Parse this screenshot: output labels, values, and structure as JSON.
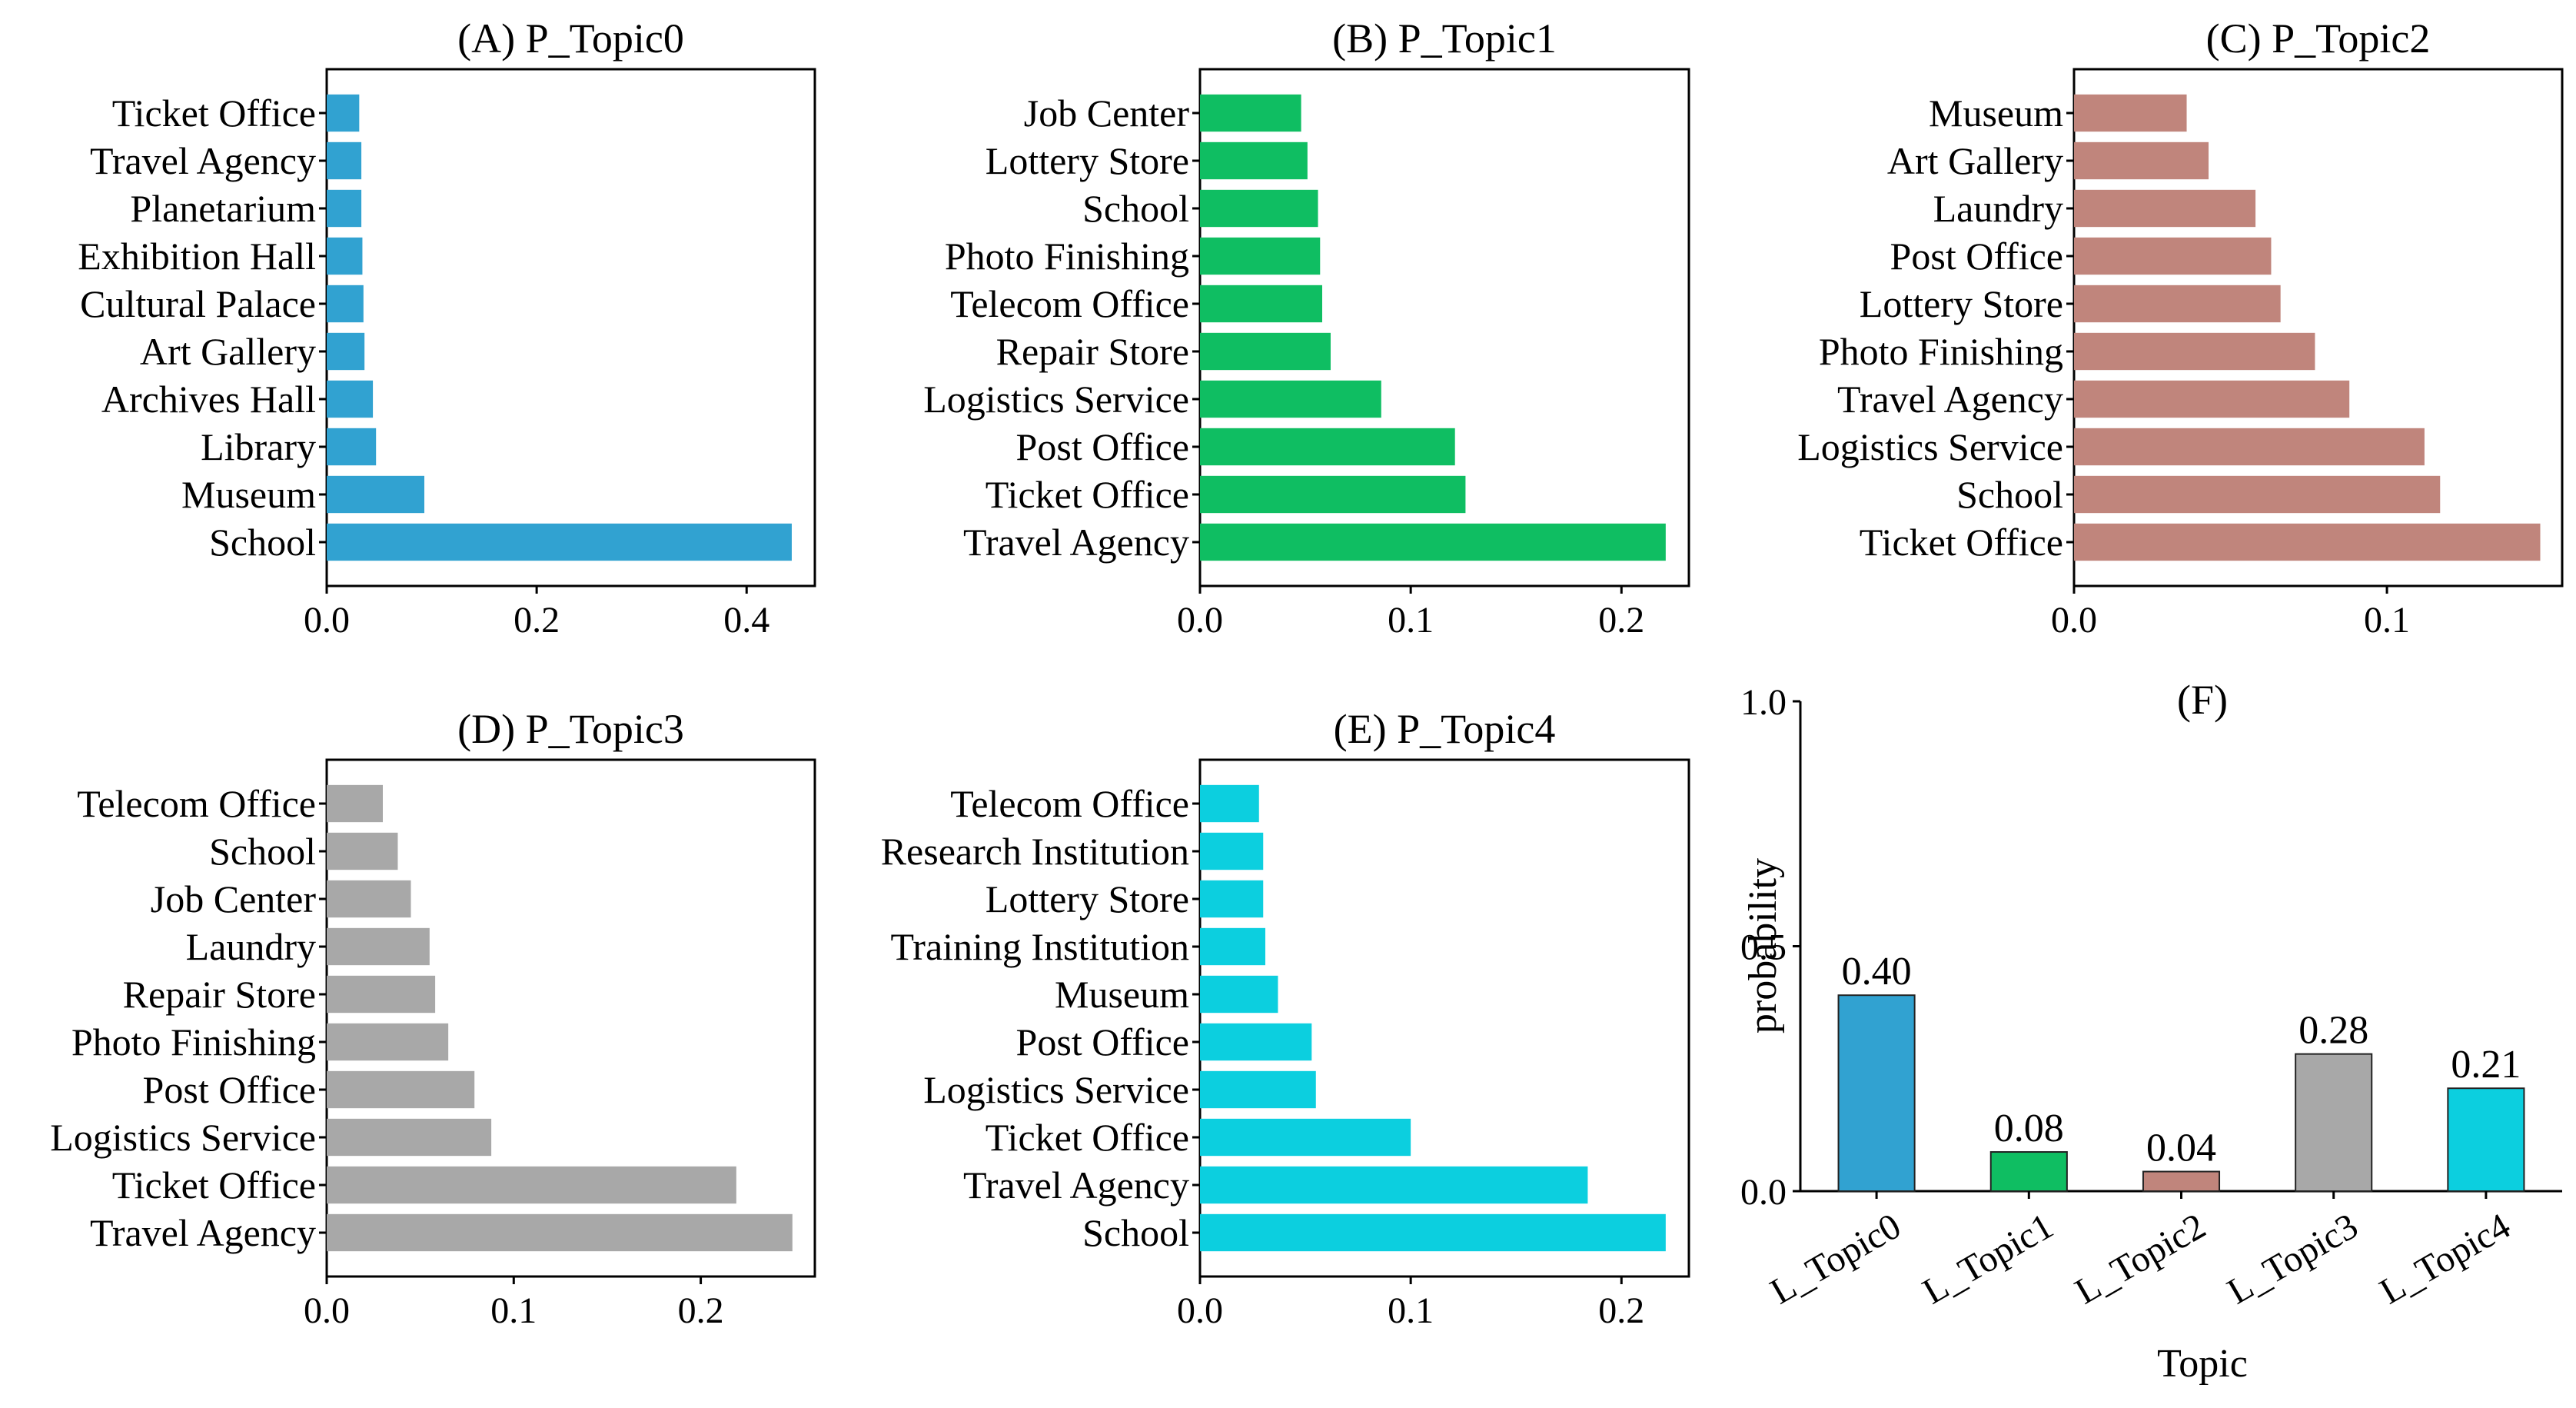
{
  "chart_data": [
    {
      "type": "bar",
      "orientation": "horizontal",
      "title": "(A) P_Topic0",
      "color": "#31a2d1",
      "categories": [
        "Ticket Office",
        "Travel Agency",
        "Planetarium",
        "Exhibition Hall",
        "Cultural Palace",
        "Art Gallery",
        "Archives Hall",
        "Library",
        "Museum",
        "School"
      ],
      "values": [
        0.031,
        0.033,
        0.033,
        0.034,
        0.035,
        0.036,
        0.044,
        0.047,
        0.093,
        0.443
      ],
      "xlim": [
        0,
        0.465
      ],
      "xticks": [
        0.0,
        0.2,
        0.4
      ],
      "xtick_labels": [
        "0.0",
        "0.2",
        "0.4"
      ]
    },
    {
      "type": "bar",
      "orientation": "horizontal",
      "title": "(B) P_Topic1",
      "color": "#0fbe62",
      "categories": [
        "Job Center",
        "Lottery Store",
        "School",
        "Photo Finishing",
        "Telecom Office",
        "Repair Store",
        "Logistics Service",
        "Post Office",
        "Ticket Office",
        "Travel Agency"
      ],
      "values": [
        0.048,
        0.051,
        0.056,
        0.057,
        0.058,
        0.062,
        0.086,
        0.121,
        0.126,
        0.221
      ],
      "xlim": [
        0,
        0.232
      ],
      "xticks": [
        0.0,
        0.1,
        0.2
      ],
      "xtick_labels": [
        "0.0",
        "0.1",
        "0.2"
      ]
    },
    {
      "type": "bar",
      "orientation": "horizontal",
      "title": "(C) P_Topic2",
      "color": "#c0857c",
      "categories": [
        "Museum",
        "Art Gallery",
        "Laundry",
        "Post Office",
        "Lottery Store",
        "Photo Finishing",
        "Travel Agency",
        "Logistics Service",
        "School",
        "Ticket Office"
      ],
      "values": [
        0.036,
        0.043,
        0.058,
        0.063,
        0.066,
        0.077,
        0.088,
        0.112,
        0.117,
        0.149
      ],
      "xlim": [
        0,
        0.156
      ],
      "xticks": [
        0.0,
        0.1
      ],
      "xtick_labels": [
        "0.0",
        "0.1"
      ]
    },
    {
      "type": "bar",
      "orientation": "horizontal",
      "title": "(D) P_Topic3",
      "color": "#a8a8a8",
      "categories": [
        "Telecom Office",
        "School",
        "Job Center",
        "Laundry",
        "Repair Store",
        "Photo Finishing",
        "Post Office",
        "Logistics Service",
        "Ticket Office",
        "Travel Agency"
      ],
      "values": [
        0.03,
        0.038,
        0.045,
        0.055,
        0.058,
        0.065,
        0.079,
        0.088,
        0.219,
        0.249
      ],
      "xlim": [
        0,
        0.261
      ],
      "xticks": [
        0.0,
        0.1,
        0.2
      ],
      "xtick_labels": [
        "0.0",
        "0.1",
        "0.2"
      ]
    },
    {
      "type": "bar",
      "orientation": "horizontal",
      "title": "(E) P_Topic4",
      "color": "#0ccfdf",
      "categories": [
        "Telecom Office",
        "Research Institution",
        "Lottery Store",
        "Training Institution",
        "Museum",
        "Post Office",
        "Logistics Service",
        "Ticket Office",
        "Travel Agency",
        "School"
      ],
      "values": [
        0.028,
        0.03,
        0.03,
        0.031,
        0.037,
        0.053,
        0.055,
        0.1,
        0.184,
        0.221
      ],
      "xlim": [
        0,
        0.232
      ],
      "xticks": [
        0.0,
        0.1,
        0.2
      ],
      "xtick_labels": [
        "0.0",
        "0.1",
        "0.2"
      ]
    },
    {
      "type": "bar",
      "orientation": "vertical",
      "title": "(F)",
      "categories": [
        "L_Topic0",
        "L_Topic1",
        "L_Topic2",
        "L_Topic3",
        "L_Topic4"
      ],
      "values": [
        0.4,
        0.08,
        0.04,
        0.28,
        0.21
      ],
      "value_labels": [
        "0.40",
        "0.08",
        "0.04",
        "0.28",
        "0.21"
      ],
      "colors": [
        "#31a2d1",
        "#0fbe62",
        "#c0857c",
        "#a8a8a8",
        "#0ccfdf"
      ],
      "xlabel": "Topic",
      "ylabel": "probability",
      "ylim": [
        0,
        1.0
      ],
      "yticks": [
        0.0,
        0.5,
        1.0
      ],
      "ytick_labels": [
        "0.0",
        "0.5",
        "1.0"
      ]
    }
  ]
}
